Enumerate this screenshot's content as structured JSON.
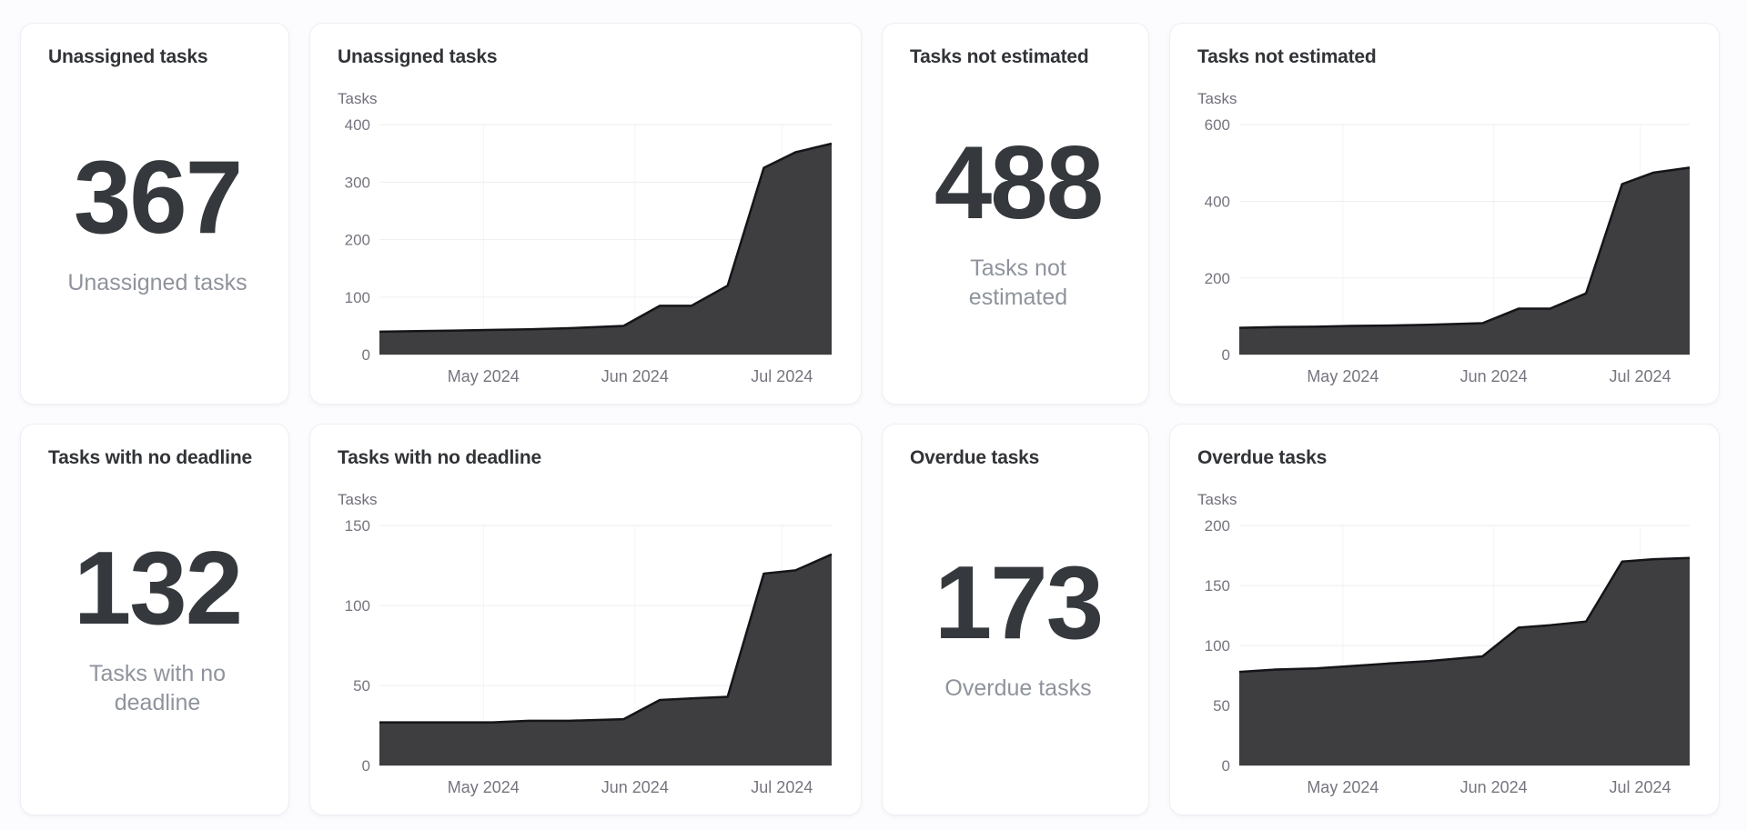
{
  "colors": {
    "page_background": "#fcfbfd",
    "card_background": "#ffffff",
    "card_border": "#f0eef4",
    "title_text": "#313337",
    "scalar_text": "#35383d",
    "caption_text": "#8f939c",
    "axis_tick": "#75757f",
    "gridline": "#efedf2",
    "grid_vertical": "#f5f3f7",
    "area_fill": "#3e3d40",
    "area_line": "#141518"
  },
  "cards": [
    {
      "type": "scalar",
      "title": "Unassigned tasks",
      "value": "367",
      "caption": "Unassigned tasks"
    },
    {
      "type": "chart",
      "title": "Unassigned tasks",
      "chart_index": 0
    },
    {
      "type": "scalar",
      "title": "Tasks not estimated",
      "value": "488",
      "caption": "Tasks not estimated"
    },
    {
      "type": "chart",
      "title": "Tasks not estimated",
      "chart_index": 1
    },
    {
      "type": "scalar",
      "title": "Tasks with no deadline",
      "value": "132",
      "caption": "Tasks with no deadline"
    },
    {
      "type": "chart",
      "title": "Tasks with no deadline",
      "chart_index": 2
    },
    {
      "type": "scalar",
      "title": "Overdue tasks",
      "value": "173",
      "caption": "Overdue tasks"
    },
    {
      "type": "chart",
      "title": "Overdue tasks",
      "chart_index": 3
    }
  ],
  "chart_data": [
    {
      "type": "area",
      "title": "Unassigned tasks",
      "ylabel": "Tasks",
      "ylim": [
        0,
        400
      ],
      "y_ticks": [
        0,
        100,
        200,
        300,
        400
      ],
      "x_tick_labels": [
        "May 2024",
        "Jun 2024",
        "Jul 2024"
      ],
      "x_tick_positions": [
        0.23,
        0.565,
        0.89
      ],
      "x": [
        0,
        0.08,
        0.17,
        0.25,
        0.33,
        0.42,
        0.54,
        0.62,
        0.69,
        0.77,
        0.85,
        0.92,
        1
      ],
      "values": [
        40,
        41,
        42,
        43,
        44,
        46,
        50,
        85,
        85,
        120,
        325,
        352,
        367
      ],
      "grid": true,
      "legend": "none"
    },
    {
      "type": "area",
      "title": "Tasks not estimated",
      "ylabel": "Tasks",
      "ylim": [
        0,
        600
      ],
      "y_ticks": [
        0,
        200,
        400,
        600
      ],
      "x_tick_labels": [
        "May 2024",
        "Jun 2024",
        "Jul 2024"
      ],
      "x_tick_positions": [
        0.23,
        0.565,
        0.89
      ],
      "x": [
        0,
        0.08,
        0.17,
        0.25,
        0.33,
        0.42,
        0.54,
        0.62,
        0.69,
        0.77,
        0.85,
        0.92,
        1
      ],
      "values": [
        70,
        72,
        73,
        75,
        76,
        78,
        82,
        120,
        120,
        160,
        445,
        475,
        488
      ],
      "grid": true,
      "legend": "none"
    },
    {
      "type": "area",
      "title": "Tasks with no deadline",
      "ylabel": "Tasks",
      "ylim": [
        0,
        150
      ],
      "y_ticks": [
        0,
        50,
        100,
        150
      ],
      "x_tick_labels": [
        "May 2024",
        "Jun 2024",
        "Jul 2024"
      ],
      "x_tick_positions": [
        0.23,
        0.565,
        0.89
      ],
      "x": [
        0,
        0.08,
        0.17,
        0.25,
        0.33,
        0.42,
        0.54,
        0.62,
        0.69,
        0.77,
        0.85,
        0.92,
        1
      ],
      "values": [
        27,
        27,
        27,
        27,
        28,
        28,
        29,
        41,
        42,
        43,
        120,
        122,
        132
      ],
      "grid": true,
      "legend": "none"
    },
    {
      "type": "area",
      "title": "Overdue tasks",
      "ylabel": "Tasks",
      "ylim": [
        0,
        200
      ],
      "y_ticks": [
        0,
        50,
        100,
        150,
        200
      ],
      "x_tick_labels": [
        "May 2024",
        "Jun 2024",
        "Jul 2024"
      ],
      "x_tick_positions": [
        0.23,
        0.565,
        0.89
      ],
      "x": [
        0,
        0.08,
        0.17,
        0.25,
        0.33,
        0.42,
        0.54,
        0.62,
        0.69,
        0.77,
        0.85,
        0.92,
        1
      ],
      "values": [
        78,
        80,
        81,
        83,
        85,
        87,
        91,
        115,
        117,
        120,
        170,
        172,
        173
      ],
      "grid": true,
      "legend": "none"
    }
  ]
}
